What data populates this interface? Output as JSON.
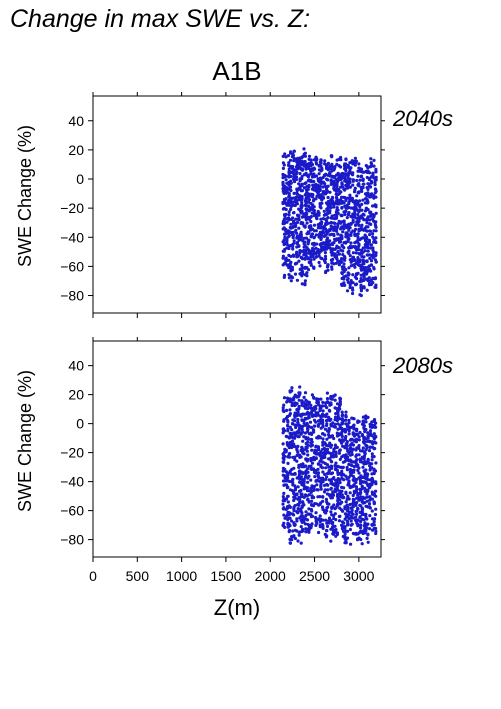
{
  "figure": {
    "title": "Change in max SWE vs. Z:",
    "scenario": "A1B"
  },
  "colors": {
    "points": "#1a1ac8",
    "period_label": "#1a1ab4",
    "axis": "#000000"
  },
  "chart_data": [
    {
      "type": "scatter",
      "period": "2040s",
      "ylabel": "SWE Change (%)",
      "xlabel": "",
      "xlim": [
        0,
        3250
      ],
      "ylim": [
        -92,
        57
      ],
      "yticks": [
        "40",
        "20",
        "0",
        "−20",
        "−40",
        "−60",
        "−80"
      ],
      "ytick_values": [
        40,
        20,
        0,
        -20,
        -40,
        -60,
        -80
      ],
      "xtick_values": [
        0,
        500,
        1000,
        1500,
        2000,
        2500,
        3000
      ],
      "x_range": [
        2130,
        3200
      ],
      "y_range_approx": [
        -83,
        25
      ],
      "clusters": [
        {
          "x": [
            2140,
            2400
          ],
          "y": [
            -75,
            24
          ]
        },
        {
          "x": [
            2400,
            2800
          ],
          "y": [
            -68,
            18
          ]
        },
        {
          "x": [
            2800,
            3200
          ],
          "y": [
            -83,
            16
          ]
        }
      ]
    },
    {
      "type": "scatter",
      "period": "2080s",
      "ylabel": "SWE Change (%)",
      "xlabel": "Z(m)",
      "xlim": [
        0,
        3250
      ],
      "ylim": [
        -92,
        57
      ],
      "yticks": [
        "40",
        "20",
        "0",
        "−20",
        "−40",
        "−60",
        "−80"
      ],
      "ytick_values": [
        40,
        20,
        0,
        -20,
        -40,
        -60,
        -80
      ],
      "xticks": [
        "0",
        "500",
        "1000",
        "1500",
        "2000",
        "2500",
        "3000"
      ],
      "xtick_values": [
        0,
        500,
        1000,
        1500,
        2000,
        2500,
        3000
      ],
      "x_range": [
        2130,
        3200
      ],
      "y_range_approx": [
        -87,
        26
      ],
      "clusters": [
        {
          "x": [
            2140,
            2400
          ],
          "y": [
            -84,
            26
          ]
        },
        {
          "x": [
            2400,
            2800
          ],
          "y": [
            -83,
            24
          ]
        },
        {
          "x": [
            2800,
            3200
          ],
          "y": [
            -87,
            10
          ]
        }
      ]
    }
  ]
}
